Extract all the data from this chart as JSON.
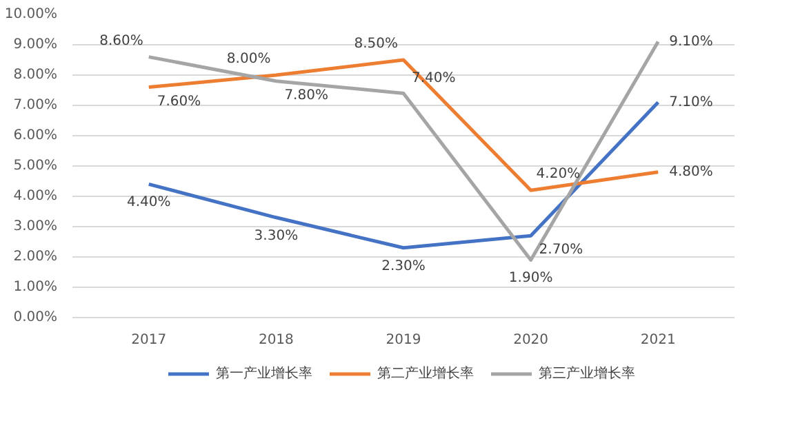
{
  "chart_data": {
    "type": "line",
    "categories": [
      "2017",
      "2018",
      "2019",
      "2020",
      "2021"
    ],
    "series": [
      {
        "name": "第一产业增长率",
        "color": "#4472c4",
        "values": [
          4.4,
          3.3,
          2.3,
          2.7,
          7.1
        ],
        "value_labels": [
          "4.40%",
          "3.30%",
          "2.30%",
          "2.70%",
          "7.10%"
        ]
      },
      {
        "name": "第二产业增长率",
        "color": "#ed7d31",
        "values": [
          7.6,
          8.0,
          8.5,
          4.2,
          4.8
        ],
        "value_labels": [
          "7.60%",
          "8.00%",
          "8.50%",
          "4.20%",
          "4.80%"
        ]
      },
      {
        "name": "第三产业增长率",
        "color": "#a5a5a5",
        "values": [
          8.6,
          7.8,
          7.4,
          1.9,
          9.1
        ],
        "value_labels": [
          "8.60%",
          "7.80%",
          "7.40%",
          "1.90%",
          "9.10%"
        ]
      }
    ],
    "ylim": [
      0,
      10
    ],
    "yticks": [
      {
        "value": 0,
        "label": "0.00%"
      },
      {
        "value": 1,
        "label": "1.00%"
      },
      {
        "value": 2,
        "label": "2.00%"
      },
      {
        "value": 3,
        "label": "3.00%"
      },
      {
        "value": 4,
        "label": "4.00%"
      },
      {
        "value": 5,
        "label": "5.00%"
      },
      {
        "value": 6,
        "label": "6.00%"
      },
      {
        "value": 7,
        "label": "7.00%"
      },
      {
        "value": 8,
        "label": "8.00%"
      },
      {
        "value": 9,
        "label": "9.00%"
      },
      {
        "value": 10,
        "label": "10.00%"
      }
    ],
    "grid": "y",
    "legend": "bottom",
    "line_style": "solid",
    "marker": "none"
  }
}
